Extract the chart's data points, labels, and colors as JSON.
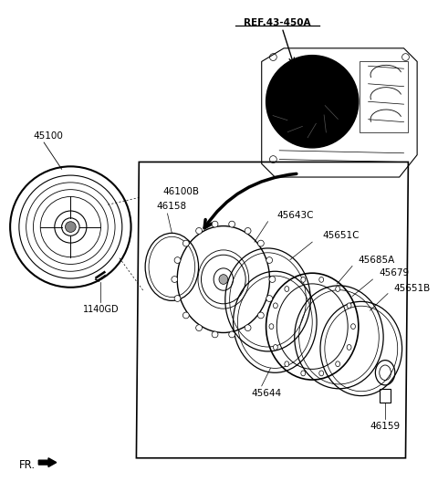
{
  "bg_color": "#ffffff",
  "labels": {
    "REF": "REF.43-450A",
    "p45100": "45100",
    "p46100B": "46100B",
    "p46158": "46158",
    "p45643C": "45643C",
    "p1140GD": "1140GD",
    "p45651C": "45651C",
    "p45685A": "45685A",
    "p45679": "45679",
    "p45651B": "45651B",
    "p46159": "46159",
    "p45644": "45644",
    "FR": "FR."
  },
  "figsize": [
    4.8,
    5.39
  ],
  "dpi": 100
}
